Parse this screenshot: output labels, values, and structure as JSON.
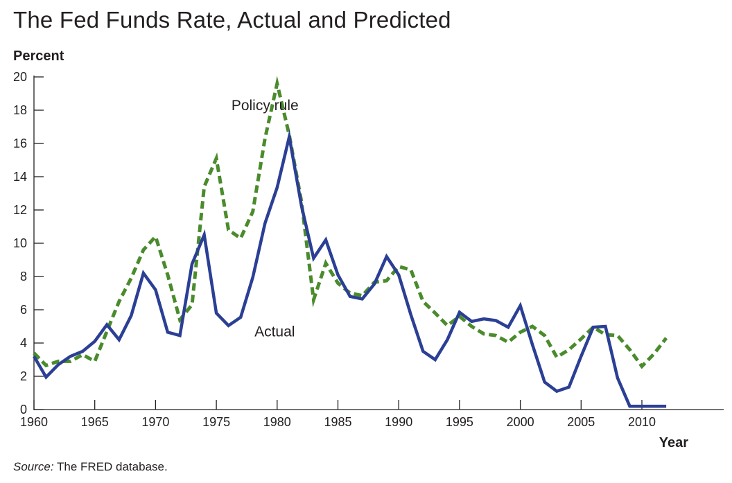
{
  "chart_data": {
    "type": "line",
    "title": "The Fed Funds Rate, Actual and Predicted",
    "ylabel": "Percent",
    "xlabel": "Year",
    "source_label": "Source:",
    "source_text": " The FRED database.",
    "xlim": [
      1960,
      2016
    ],
    "ylim": [
      0,
      20
    ],
    "x_ticks": [
      1960,
      1965,
      1970,
      1975,
      1980,
      1985,
      1990,
      1995,
      2000,
      2005,
      2010
    ],
    "y_ticks": [
      0,
      2,
      4,
      6,
      8,
      10,
      12,
      14,
      16,
      18,
      20
    ],
    "grid": false,
    "series": [
      {
        "name": "Actual",
        "color": "#2b3f95",
        "style": "solid",
        "x": [
          1960,
          1961,
          1962,
          1963,
          1964,
          1965,
          1966,
          1967,
          1968,
          1969,
          1970,
          1971,
          1972,
          1973,
          1974,
          1975,
          1976,
          1977,
          1978,
          1979,
          1980,
          1981,
          1982,
          1983,
          1984,
          1985,
          1986,
          1987,
          1988,
          1989,
          1990,
          1991,
          1992,
          1993,
          1994,
          1995,
          1996,
          1997,
          1998,
          1999,
          2000,
          2001,
          2002,
          2003,
          2004,
          2005,
          2006,
          2007,
          2008,
          2009,
          2010,
          2011,
          2012
        ],
        "values": [
          3.2,
          1.95,
          2.7,
          3.2,
          3.5,
          4.1,
          5.1,
          4.2,
          5.65,
          8.2,
          7.2,
          4.65,
          4.45,
          8.75,
          10.5,
          5.8,
          5.05,
          5.55,
          7.95,
          11.2,
          13.35,
          16.4,
          12.25,
          9.1,
          10.2,
          8.1,
          6.8,
          6.65,
          7.55,
          9.2,
          8.1,
          5.7,
          3.5,
          3.0,
          4.2,
          5.85,
          5.3,
          5.45,
          5.35,
          4.95,
          6.25,
          3.9,
          1.65,
          1.1,
          1.35,
          3.2,
          4.95,
          5.0,
          1.9,
          0.2,
          0.2,
          0.2,
          0.2
        ]
      },
      {
        "name": "Policy rule",
        "color": "#4a8b2c",
        "style": "dashed",
        "x": [
          1960,
          1961,
          1962,
          1963,
          1964,
          1965,
          1966,
          1967,
          1968,
          1969,
          1970,
          1971,
          1972,
          1973,
          1974,
          1975,
          1976,
          1977,
          1978,
          1979,
          1980,
          1981,
          1982,
          1983,
          1984,
          1985,
          1986,
          1987,
          1988,
          1989,
          1990,
          1991,
          1992,
          1993,
          1994,
          1995,
          1996,
          1997,
          1998,
          1999,
          2000,
          2001,
          2002,
          2003,
          2004,
          2005,
          2006,
          2007,
          2008,
          2009,
          2010,
          2011,
          2012
        ],
        "values": [
          3.4,
          2.65,
          2.9,
          2.9,
          3.3,
          2.9,
          4.7,
          6.5,
          7.9,
          9.6,
          10.4,
          8.1,
          5.4,
          6.3,
          13.4,
          15.1,
          10.8,
          10.3,
          11.9,
          16.3,
          19.6,
          16.5,
          12.5,
          6.6,
          8.8,
          7.6,
          7.0,
          6.85,
          7.65,
          7.75,
          8.6,
          8.4,
          6.5,
          5.8,
          5.05,
          5.6,
          5.0,
          4.55,
          4.45,
          4.05,
          4.65,
          5.0,
          4.45,
          3.15,
          3.6,
          4.25,
          4.95,
          4.5,
          4.45,
          3.6,
          2.6,
          3.35,
          4.3
        ]
      }
    ],
    "annotations": [
      {
        "text": "Policy rule",
        "x": 1979.0,
        "y": 18.0
      },
      {
        "text": "Actual",
        "x": 1979.8,
        "y": 4.4
      }
    ]
  }
}
